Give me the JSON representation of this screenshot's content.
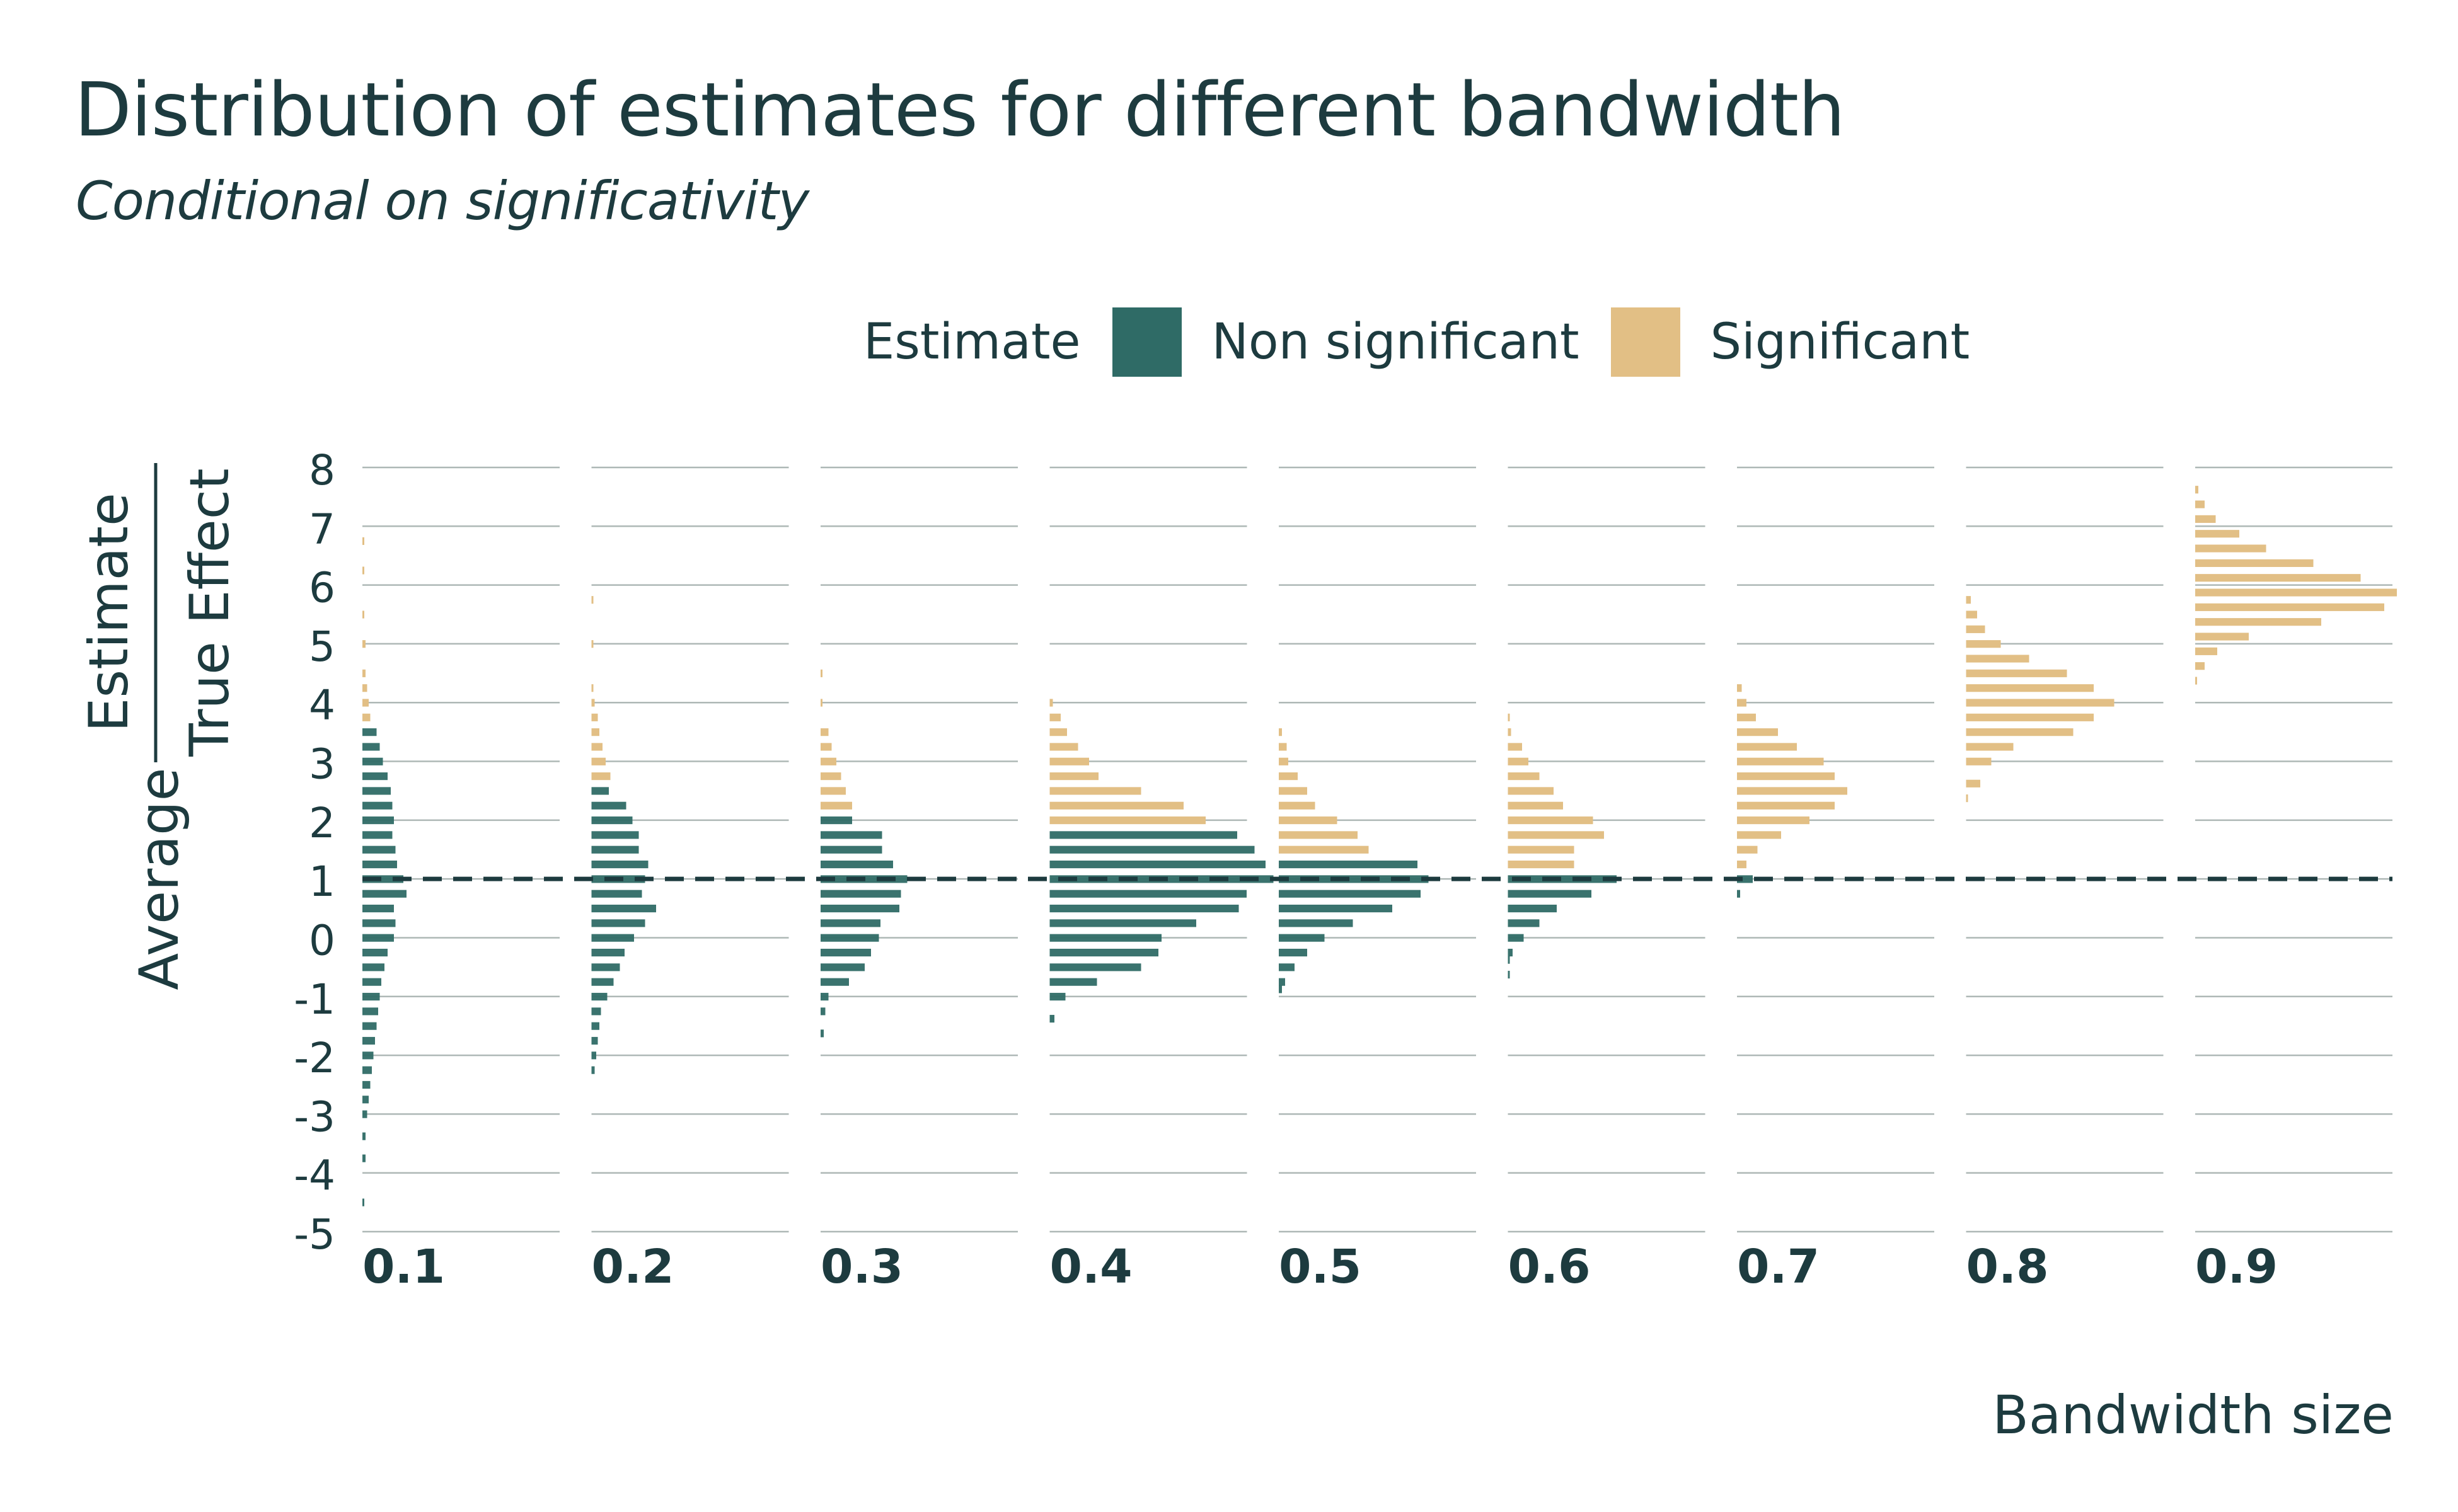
{
  "chart_title": "Distribution of estimates for different bandwidth",
  "chart_subtitle": "Conditional on significativity",
  "legend": {
    "title": "Estimate",
    "items": [
      {
        "label": "Non significant",
        "color": "#2f6b66"
      },
      {
        "label": "Significant",
        "color": "#e2bf85"
      }
    ]
  },
  "reference_line_color": "#1d3b3f",
  "chart_data": {
    "type": "histogram",
    "facets_label": "Bandwidth size",
    "ylabel": {
      "prefix": "Average",
      "numerator": "Estimate",
      "denominator": "True Effect"
    },
    "ylim": [
      -5,
      8
    ],
    "yticks": [
      8,
      7,
      6,
      5,
      4,
      3,
      2,
      1,
      0,
      -1,
      -2,
      -3,
      -4,
      -5
    ],
    "reference_line": 1,
    "grid": true,
    "bin_width": 0.125,
    "panels": [
      {
        "label": "0.1",
        "bins": [
          [
            -4.5,
            0.01,
            "ns"
          ],
          [
            -3.75,
            0.02,
            "ns"
          ],
          [
            -3.375,
            0.02,
            "ns"
          ],
          [
            -3.0,
            0.03,
            "ns"
          ],
          [
            -2.75,
            0.04,
            "ns"
          ],
          [
            -2.5,
            0.05,
            "ns"
          ],
          [
            -2.25,
            0.06,
            "ns"
          ],
          [
            -2.0,
            0.07,
            "ns"
          ],
          [
            -1.75,
            0.08,
            "ns"
          ],
          [
            -1.5,
            0.09,
            "ns"
          ],
          [
            -1.25,
            0.1,
            "ns"
          ],
          [
            -1.0,
            0.11,
            "ns"
          ],
          [
            -0.75,
            0.12,
            "ns"
          ],
          [
            -0.5,
            0.14,
            "ns"
          ],
          [
            -0.25,
            0.16,
            "ns"
          ],
          [
            0.0,
            0.2,
            "ns"
          ],
          [
            0.25,
            0.21,
            "ns"
          ],
          [
            0.5,
            0.2,
            "ns"
          ],
          [
            0.75,
            0.28,
            "ns"
          ],
          [
            1.0,
            0.26,
            "ns"
          ],
          [
            1.25,
            0.22,
            "ns"
          ],
          [
            1.5,
            0.21,
            "ns"
          ],
          [
            1.75,
            0.19,
            "ns"
          ],
          [
            2.0,
            0.2,
            "ns"
          ],
          [
            2.25,
            0.19,
            "ns"
          ],
          [
            2.5,
            0.18,
            "ns"
          ],
          [
            2.75,
            0.16,
            "ns"
          ],
          [
            3.0,
            0.13,
            "ns"
          ],
          [
            3.25,
            0.11,
            "ns"
          ],
          [
            3.5,
            0.09,
            "ns"
          ],
          [
            3.75,
            0.05,
            "s"
          ],
          [
            4.0,
            0.04,
            "s"
          ],
          [
            4.25,
            0.03,
            "s"
          ],
          [
            4.5,
            0.02,
            "s"
          ],
          [
            5.0,
            0.02,
            "s"
          ],
          [
            5.5,
            0.01,
            "s"
          ],
          [
            6.25,
            0.01,
            "s"
          ],
          [
            6.75,
            0.005,
            "s"
          ]
        ]
      },
      {
        "label": "0.2",
        "bins": [
          [
            -2.25,
            0.02,
            "ns"
          ],
          [
            -2.0,
            0.03,
            "ns"
          ],
          [
            -1.75,
            0.04,
            "ns"
          ],
          [
            -1.5,
            0.05,
            "ns"
          ],
          [
            -1.25,
            0.06,
            "ns"
          ],
          [
            -1.0,
            0.1,
            "ns"
          ],
          [
            -0.75,
            0.14,
            "ns"
          ],
          [
            -0.5,
            0.18,
            "ns"
          ],
          [
            -0.25,
            0.21,
            "ns"
          ],
          [
            0.0,
            0.27,
            "ns"
          ],
          [
            0.25,
            0.34,
            "ns"
          ],
          [
            0.5,
            0.41,
            "ns"
          ],
          [
            0.75,
            0.32,
            "ns"
          ],
          [
            1.0,
            0.34,
            "ns"
          ],
          [
            1.25,
            0.36,
            "ns"
          ],
          [
            1.5,
            0.3,
            "ns"
          ],
          [
            1.75,
            0.3,
            "ns"
          ],
          [
            2.0,
            0.26,
            "ns"
          ],
          [
            2.25,
            0.22,
            "ns"
          ],
          [
            2.5,
            0.11,
            "ns"
          ],
          [
            2.75,
            0.12,
            "s"
          ],
          [
            3.0,
            0.09,
            "s"
          ],
          [
            3.25,
            0.07,
            "s"
          ],
          [
            3.5,
            0.05,
            "s"
          ],
          [
            3.75,
            0.04,
            "s"
          ],
          [
            4.0,
            0.02,
            "s"
          ],
          [
            4.25,
            0.01,
            "s"
          ],
          [
            5.0,
            0.005,
            "s"
          ],
          [
            5.75,
            0.005,
            "s"
          ]
        ]
      },
      {
        "label": "0.3",
        "bins": [
          [
            -1.625,
            0.02,
            "ns"
          ],
          [
            -1.25,
            0.03,
            "ns"
          ],
          [
            -1.0,
            0.05,
            "ns"
          ],
          [
            -0.75,
            0.18,
            "ns"
          ],
          [
            -0.5,
            0.28,
            "ns"
          ],
          [
            -0.25,
            0.32,
            "ns"
          ],
          [
            0.0,
            0.37,
            "ns"
          ],
          [
            0.25,
            0.38,
            "ns"
          ],
          [
            0.5,
            0.5,
            "ns"
          ],
          [
            0.75,
            0.51,
            "ns"
          ],
          [
            1.0,
            0.55,
            "ns"
          ],
          [
            1.25,
            0.46,
            "ns"
          ],
          [
            1.5,
            0.39,
            "ns"
          ],
          [
            1.75,
            0.39,
            "ns"
          ],
          [
            2.0,
            0.2,
            "ns"
          ],
          [
            2.25,
            0.2,
            "s"
          ],
          [
            2.5,
            0.16,
            "s"
          ],
          [
            2.75,
            0.13,
            "s"
          ],
          [
            3.0,
            0.1,
            "s"
          ],
          [
            3.25,
            0.07,
            "s"
          ],
          [
            3.5,
            0.05,
            "s"
          ],
          [
            4.0,
            0.01,
            "s"
          ],
          [
            4.5,
            0.005,
            "s"
          ]
        ]
      },
      {
        "label": "0.4",
        "bins": [
          [
            -1.375,
            0.03,
            "ns"
          ],
          [
            -1.0,
            0.1,
            "ns"
          ],
          [
            -0.75,
            0.3,
            "ns"
          ],
          [
            -0.5,
            0.58,
            "ns"
          ],
          [
            -0.25,
            0.69,
            "ns"
          ],
          [
            0.0,
            0.71,
            "ns"
          ],
          [
            0.25,
            0.93,
            "ns"
          ],
          [
            0.5,
            1.2,
            "ns"
          ],
          [
            0.75,
            1.25,
            "ns"
          ],
          [
            1.0,
            1.42,
            "ns"
          ],
          [
            1.25,
            1.37,
            "ns"
          ],
          [
            1.5,
            1.3,
            "ns"
          ],
          [
            1.75,
            1.19,
            "ns"
          ],
          [
            2.0,
            0.99,
            "s"
          ],
          [
            2.25,
            0.85,
            "s"
          ],
          [
            2.5,
            0.58,
            "s"
          ],
          [
            2.75,
            0.31,
            "s"
          ],
          [
            3.0,
            0.25,
            "s"
          ],
          [
            3.25,
            0.18,
            "s"
          ],
          [
            3.5,
            0.11,
            "s"
          ],
          [
            3.75,
            0.07,
            "s"
          ],
          [
            4.0,
            0.02,
            "s"
          ]
        ]
      },
      {
        "label": "0.5",
        "bins": [
          [
            -0.875,
            0.02,
            "ns"
          ],
          [
            -0.75,
            0.04,
            "ns"
          ],
          [
            -0.5,
            0.1,
            "ns"
          ],
          [
            -0.25,
            0.18,
            "ns"
          ],
          [
            0.0,
            0.29,
            "ns"
          ],
          [
            0.25,
            0.47,
            "ns"
          ],
          [
            0.5,
            0.72,
            "ns"
          ],
          [
            0.75,
            0.9,
            "ns"
          ],
          [
            1.0,
            0.95,
            "ns"
          ],
          [
            1.25,
            0.88,
            "ns"
          ],
          [
            1.5,
            0.57,
            "s"
          ],
          [
            1.75,
            0.5,
            "s"
          ],
          [
            2.0,
            0.37,
            "s"
          ],
          [
            2.25,
            0.23,
            "s"
          ],
          [
            2.5,
            0.18,
            "s"
          ],
          [
            2.75,
            0.12,
            "s"
          ],
          [
            3.0,
            0.06,
            "s"
          ],
          [
            3.25,
            0.05,
            "s"
          ],
          [
            3.5,
            0.02,
            "s"
          ]
        ]
      },
      {
        "label": "0.6",
        "bins": [
          [
            -0.625,
            0.01,
            "ns"
          ],
          [
            -0.375,
            0.01,
            "ns"
          ],
          [
            -0.25,
            0.03,
            "ns"
          ],
          [
            0.0,
            0.1,
            "ns"
          ],
          [
            0.25,
            0.2,
            "ns"
          ],
          [
            0.5,
            0.31,
            "ns"
          ],
          [
            0.75,
            0.53,
            "ns"
          ],
          [
            1.0,
            0.69,
            "ns"
          ],
          [
            1.25,
            0.42,
            "s"
          ],
          [
            1.5,
            0.42,
            "s"
          ],
          [
            1.75,
            0.61,
            "s"
          ],
          [
            2.0,
            0.54,
            "s"
          ],
          [
            2.25,
            0.35,
            "s"
          ],
          [
            2.5,
            0.29,
            "s"
          ],
          [
            2.75,
            0.2,
            "s"
          ],
          [
            3.0,
            0.13,
            "s"
          ],
          [
            3.25,
            0.09,
            "s"
          ],
          [
            3.5,
            0.02,
            "s"
          ],
          [
            3.75,
            0.01,
            "s"
          ]
        ]
      },
      {
        "label": "0.7",
        "bins": [
          [
            0.75,
            0.02,
            "ns"
          ],
          [
            1.0,
            0.1,
            "ns"
          ],
          [
            1.25,
            0.06,
            "s"
          ],
          [
            1.5,
            0.13,
            "s"
          ],
          [
            1.75,
            0.28,
            "s"
          ],
          [
            2.0,
            0.46,
            "s"
          ],
          [
            2.25,
            0.62,
            "s"
          ],
          [
            2.5,
            0.7,
            "s"
          ],
          [
            2.75,
            0.62,
            "s"
          ],
          [
            3.0,
            0.55,
            "s"
          ],
          [
            3.25,
            0.38,
            "s"
          ],
          [
            3.5,
            0.26,
            "s"
          ],
          [
            3.75,
            0.12,
            "s"
          ],
          [
            4.0,
            0.06,
            "s"
          ],
          [
            4.25,
            0.03,
            "s"
          ]
        ]
      },
      {
        "label": "0.8",
        "bins": [
          [
            2.375,
            0.01,
            "s"
          ],
          [
            2.625,
            0.09,
            "s"
          ],
          [
            3.0,
            0.16,
            "s"
          ],
          [
            3.25,
            0.3,
            "s"
          ],
          [
            3.5,
            0.68,
            "s"
          ],
          [
            3.75,
            0.81,
            "s"
          ],
          [
            4.0,
            0.94,
            "s"
          ],
          [
            4.25,
            0.81,
            "s"
          ],
          [
            4.5,
            0.64,
            "s"
          ],
          [
            4.75,
            0.4,
            "s"
          ],
          [
            5.0,
            0.22,
            "s"
          ],
          [
            5.25,
            0.12,
            "s"
          ],
          [
            5.5,
            0.07,
            "s"
          ],
          [
            5.75,
            0.03,
            "s"
          ]
        ]
      },
      {
        "label": "0.9",
        "bins": [
          [
            4.375,
            0.01,
            "s"
          ],
          [
            4.625,
            0.06,
            "s"
          ],
          [
            4.875,
            0.14,
            "s"
          ],
          [
            5.125,
            0.34,
            "s"
          ],
          [
            5.375,
            0.8,
            "s"
          ],
          [
            5.625,
            1.2,
            "s"
          ],
          [
            5.875,
            1.28,
            "s"
          ],
          [
            6.125,
            1.05,
            "s"
          ],
          [
            6.375,
            0.75,
            "s"
          ],
          [
            6.625,
            0.45,
            "s"
          ],
          [
            6.875,
            0.28,
            "s"
          ],
          [
            7.125,
            0.13,
            "s"
          ],
          [
            7.375,
            0.06,
            "s"
          ],
          [
            7.625,
            0.02,
            "s"
          ]
        ]
      }
    ]
  }
}
